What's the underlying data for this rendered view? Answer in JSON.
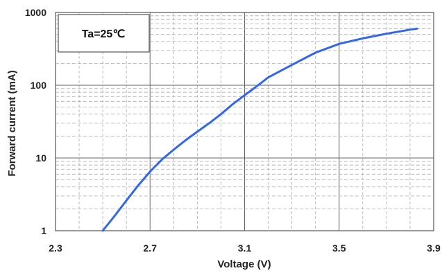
{
  "chart_data": {
    "type": "line",
    "xlabel": "Voltage (V)",
    "ylabel": "Forward current (mA)",
    "x_ticks": [
      "2.3",
      "2.7",
      "3.1",
      "3.5",
      "3.9"
    ],
    "x_tick_values": [
      2.3,
      2.7,
      3.1,
      3.5,
      3.9
    ],
    "y_ticks": [
      "1",
      "10",
      "100",
      "1000"
    ],
    "y_tick_values": [
      1,
      10,
      100,
      1000
    ],
    "xlim": [
      2.3,
      3.9
    ],
    "ylim": [
      1,
      1000
    ],
    "y_scale": "log",
    "grid": true,
    "annotation": "Ta=25℃",
    "series": [
      {
        "color": "#3366ee",
        "x": [
          2.5,
          2.55,
          2.6,
          2.65,
          2.7,
          2.75,
          2.8,
          2.85,
          2.9,
          2.95,
          3.0,
          3.05,
          3.1,
          3.15,
          3.2,
          3.3,
          3.4,
          3.5,
          3.6,
          3.7,
          3.8,
          3.83
        ],
        "y": [
          1,
          1.6,
          2.6,
          4.2,
          6.5,
          9.5,
          13,
          17.5,
          23,
          30,
          40,
          55,
          73,
          96,
          128,
          190,
          280,
          370,
          440,
          510,
          580,
          600
        ]
      }
    ]
  }
}
